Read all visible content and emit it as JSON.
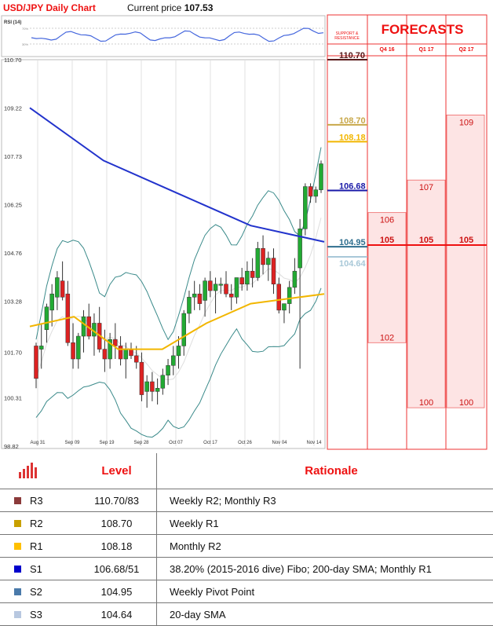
{
  "header": {
    "title": "USD/JPY Daily Chart",
    "price_label": "Current price",
    "price_value": "107.53"
  },
  "panel_labels": {
    "rsi": "RSI (14)",
    "rsi_70": "70%",
    "rsi_30": "30%",
    "sr_line1": "SUPPORT &",
    "sr_line2": "RESISTANCE"
  },
  "forecasts": {
    "title": "FORECASTS",
    "columns": [
      "Q4 16",
      "Q1 17",
      "Q2 17"
    ],
    "values": [
      {
        "period": "Q4 16",
        "high": 106,
        "mid": 105,
        "low": 102
      },
      {
        "period": "Q1 17",
        "high": 107,
        "mid": 105,
        "low": 100
      },
      {
        "period": "Q2 17",
        "high": 109,
        "mid": 105,
        "low": 100
      }
    ]
  },
  "chart_data": {
    "type": "candlestick",
    "title": "USD/JPY Daily Chart",
    "ylim": [
      98.82,
      110.7
    ],
    "y_ticks": [
      "110.70",
      "109.22",
      "107.73",
      "106.25",
      "104.76",
      "103.28",
      "101.70",
      "100.31",
      "98.82"
    ],
    "x_ticks": [
      "Aug 31",
      "Sep 09",
      "Sep 19",
      "Sep 28",
      "Oct 07",
      "Oct 17",
      "Oct 26",
      "Nov 04",
      "Nov 14"
    ],
    "candles": [
      [
        101.9,
        102.0,
        100.6,
        100.9
      ],
      [
        101.8,
        102.6,
        101.2,
        101.9
      ],
      [
        102.4,
        103.2,
        102.0,
        103.1
      ],
      [
        103.0,
        103.8,
        102.5,
        103.5
      ],
      [
        103.4,
        104.2,
        103.0,
        104.0
      ],
      [
        103.9,
        104.5,
        103.3,
        103.4
      ],
      [
        103.5,
        103.9,
        101.9,
        102.0
      ],
      [
        102.0,
        102.6,
        101.2,
        101.5
      ],
      [
        101.5,
        102.3,
        101.2,
        102.2
      ],
      [
        102.2,
        103.0,
        101.7,
        102.8
      ],
      [
        102.8,
        103.2,
        102.1,
        102.2
      ],
      [
        102.2,
        102.9,
        101.6,
        102.6
      ],
      [
        102.6,
        103.1,
        101.7,
        101.8
      ],
      [
        101.8,
        102.4,
        101.1,
        101.5
      ],
      [
        101.5,
        102.3,
        101.2,
        102.1
      ],
      [
        102.1,
        102.6,
        101.5,
        101.9
      ],
      [
        101.9,
        102.2,
        101.3,
        101.5
      ],
      [
        101.5,
        102.0,
        100.9,
        101.8
      ],
      [
        101.8,
        102.0,
        101.5,
        101.6
      ],
      [
        101.6,
        101.9,
        101.2,
        101.4
      ],
      [
        101.4,
        101.7,
        100.2,
        100.4
      ],
      [
        100.5,
        101.0,
        100.0,
        100.8
      ],
      [
        100.8,
        101.1,
        100.2,
        100.5
      ],
      [
        100.5,
        100.9,
        100.1,
        100.6
      ],
      [
        100.6,
        101.2,
        100.4,
        101.0
      ],
      [
        101.0,
        101.5,
        100.7,
        101.3
      ],
      [
        101.3,
        101.9,
        101.0,
        101.6
      ],
      [
        101.6,
        102.2,
        101.2,
        101.9
      ],
      [
        101.9,
        103.0,
        101.6,
        102.9
      ],
      [
        102.9,
        103.6,
        102.6,
        103.4
      ],
      [
        103.4,
        103.9,
        103.0,
        103.5
      ],
      [
        103.5,
        103.8,
        103.0,
        103.2
      ],
      [
        103.3,
        104.0,
        102.8,
        103.9
      ],
      [
        103.9,
        104.2,
        103.4,
        103.6
      ],
      [
        103.6,
        104.0,
        102.9,
        103.8
      ],
      [
        103.8,
        104.0,
        103.5,
        103.8
      ],
      [
        103.8,
        104.2,
        103.4,
        103.5
      ],
      [
        103.5,
        103.8,
        103.0,
        103.4
      ],
      [
        103.4,
        104.0,
        103.2,
        104.0
      ],
      [
        104.0,
        104.3,
        103.6,
        103.8
      ],
      [
        103.8,
        104.5,
        103.6,
        104.2
      ],
      [
        104.2,
        104.6,
        103.7,
        104.0
      ],
      [
        104.0,
        105.1,
        103.9,
        104.9
      ],
      [
        104.9,
        105.3,
        104.1,
        104.4
      ],
      [
        104.4,
        104.8,
        103.9,
        104.6
      ],
      [
        104.6,
        104.9,
        103.5,
        103.8
      ],
      [
        103.8,
        104.0,
        102.9,
        103.0
      ],
      [
        103.0,
        103.2,
        102.6,
        103.2
      ],
      [
        103.2,
        103.9,
        102.9,
        103.7
      ],
      [
        103.7,
        104.6,
        103.5,
        104.2
      ],
      [
        104.3,
        105.8,
        101.2,
        105.5
      ],
      [
        105.5,
        106.9,
        105.3,
        106.8
      ],
      [
        106.8,
        106.9,
        106.3,
        106.5
      ],
      [
        106.5,
        106.8,
        106.3,
        106.7
      ],
      [
        106.7,
        107.6,
        106.6,
        107.5
      ]
    ],
    "series": [
      {
        "name": "200-day SMA",
        "color": "#2233cc",
        "values": [
          [
            0,
            109.22
          ],
          [
            25,
            107.6
          ],
          [
            50,
            106.6
          ],
          [
            75,
            105.6
          ],
          [
            100,
            105.1
          ]
        ]
      },
      {
        "name": "50-day SMA",
        "color": "#f2b600",
        "values": [
          [
            0,
            102.5
          ],
          [
            15,
            102.8
          ],
          [
            30,
            101.8
          ],
          [
            45,
            101.8
          ],
          [
            60,
            102.6
          ],
          [
            75,
            103.2
          ],
          [
            100,
            103.5
          ]
        ]
      }
    ],
    "levels": [
      {
        "value": 110.7,
        "label": "110.70",
        "color": "#5a1a1a"
      },
      {
        "value": 108.7,
        "label": "108.70",
        "color": "#c8a84a"
      },
      {
        "value": 108.18,
        "label": "108.18",
        "color": "#f2b600"
      },
      {
        "value": 106.68,
        "label": "106.68",
        "color": "#1a1aa8"
      },
      {
        "value": 104.95,
        "label": "104.95",
        "color": "#2e6e8e"
      },
      {
        "value": 104.64,
        "label": "104.64",
        "color": "#a8c8d8"
      }
    ]
  },
  "table": {
    "headers": {
      "level": "Level",
      "rationale": "Rationale"
    },
    "rows": [
      {
        "name": "R3",
        "color": "#8b3a3a",
        "level": "110.70/83",
        "rationale": "Weekly R2; Monthly R3"
      },
      {
        "name": "R2",
        "color": "#c8a000",
        "level": "108.70",
        "rationale": "Weekly R1"
      },
      {
        "name": "R1",
        "color": "#ffc000",
        "level": "108.18",
        "rationale": "Monthly R2"
      },
      {
        "name": "S1",
        "color": "#0000cc",
        "level": "106.68/51",
        "rationale": "38.20% (2015-2016 dive) Fibo; 200-day SMA; Monthly R1"
      },
      {
        "name": "S2",
        "color": "#4a7aaa",
        "level": "104.95",
        "rationale": "Weekly Pivot Point"
      },
      {
        "name": "S3",
        "color": "#b8c8e0",
        "level": "104.64",
        "rationale": "20-day SMA"
      }
    ]
  }
}
